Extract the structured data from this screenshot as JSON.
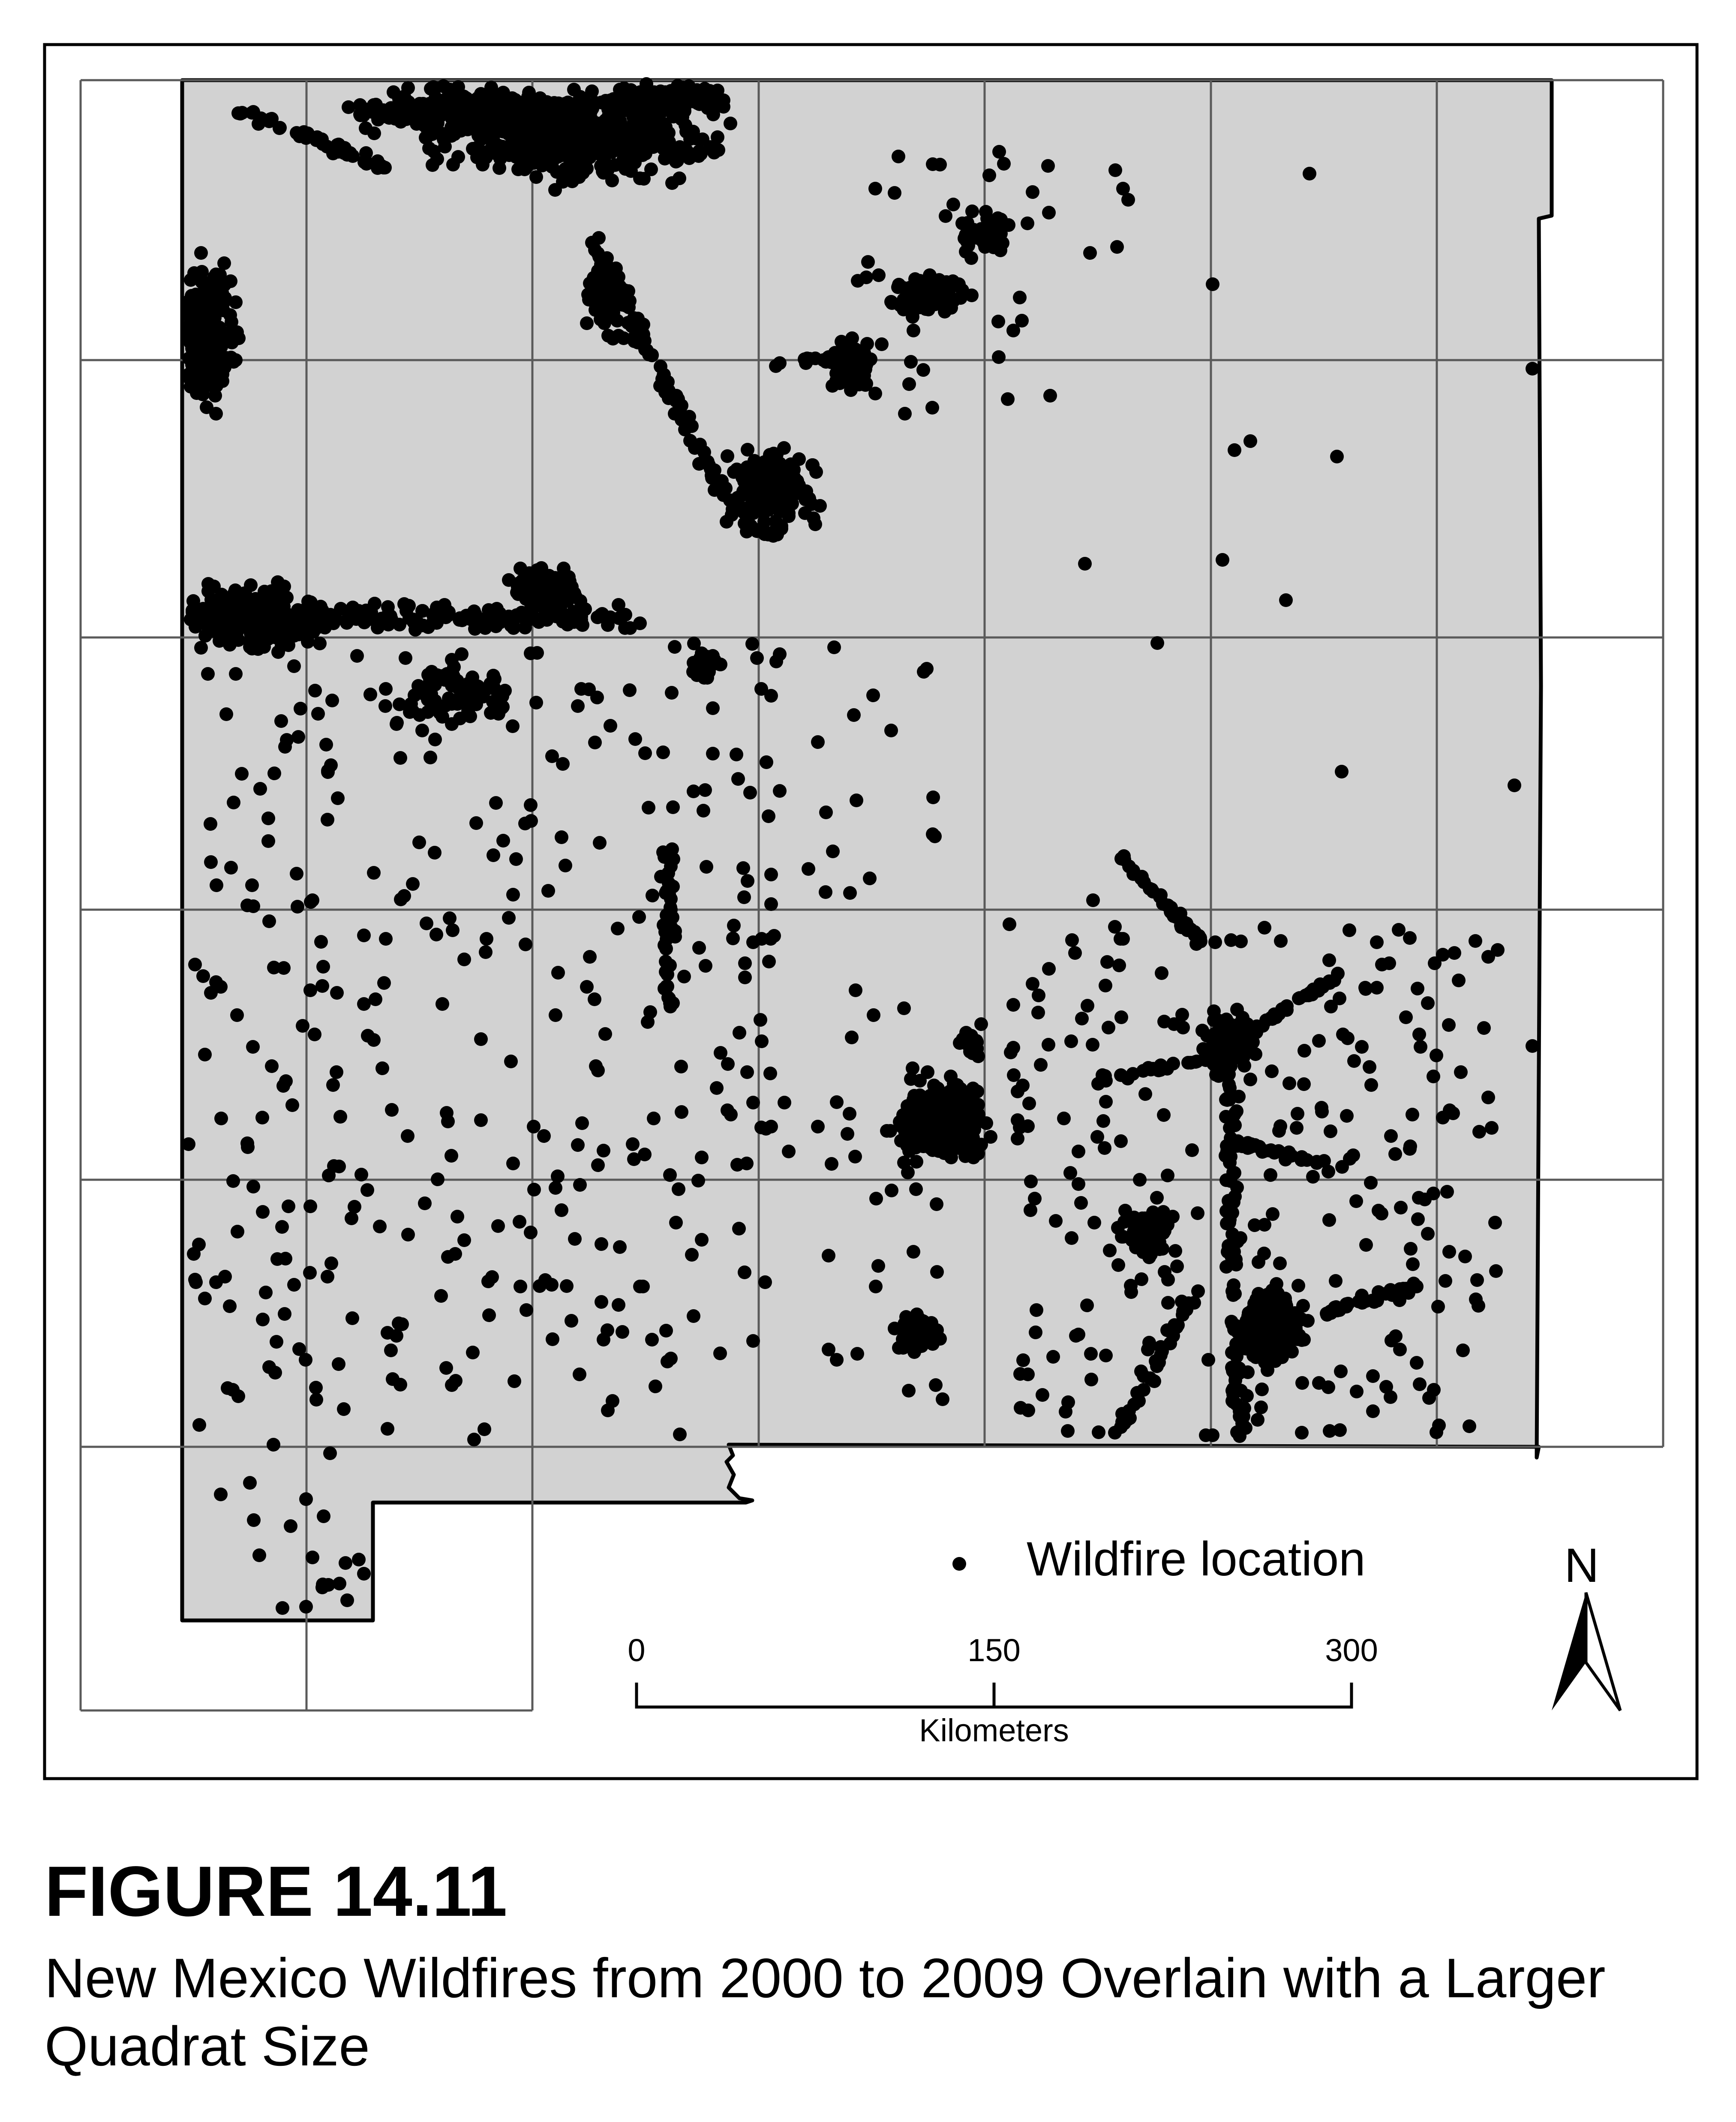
{
  "figure": {
    "label": "FIGURE 14.11",
    "caption": "New Mexico Wildfires from 2000 to 2009 Overlain with a Larger Quadrat Size"
  },
  "map": {
    "legend_label": "Wildfire location",
    "north_label": "N",
    "scale": {
      "ticks": [
        "0",
        "150",
        "300"
      ],
      "unit": "Kilometers"
    },
    "colors": {
      "land": "#d2d2d2",
      "grid": "#5a5a5a",
      "outline": "#000000",
      "dot": "#000000",
      "frame": "#000000"
    },
    "quadrats": {
      "columns": 7,
      "rows": 6,
      "shape": "square grid"
    }
  }
}
